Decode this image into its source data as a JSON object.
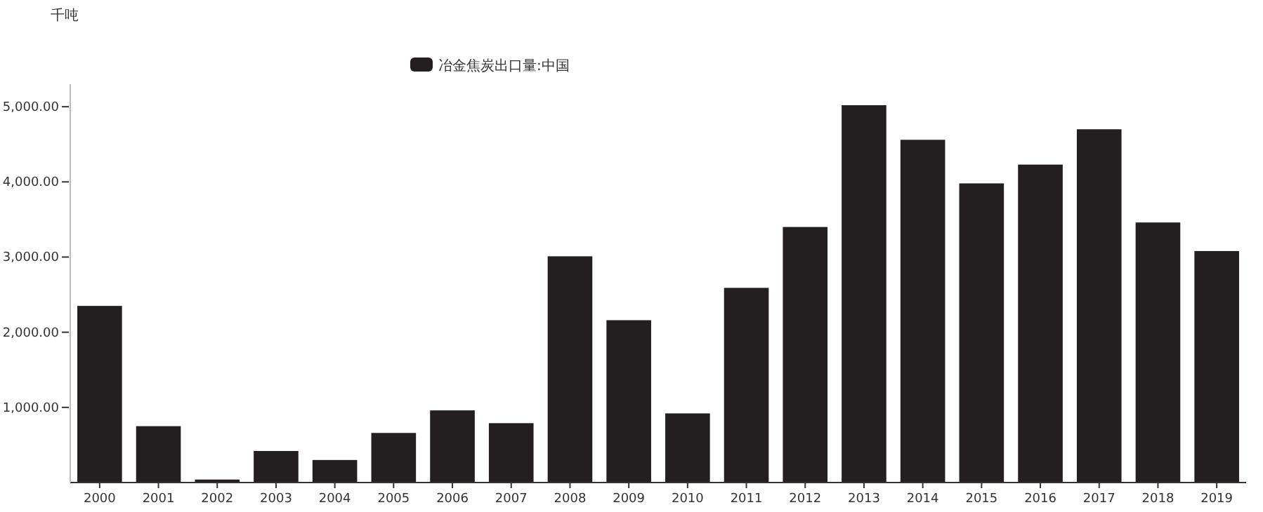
{
  "chart_data": {
    "type": "bar",
    "ylabel": "千吨",
    "categories": [
      "2000",
      "2001",
      "2002",
      "2003",
      "2004",
      "2005",
      "2006",
      "2007",
      "2008",
      "2009",
      "2010",
      "2011",
      "2012",
      "2013",
      "2014",
      "2015",
      "2016",
      "2017",
      "2018",
      "2019"
    ],
    "series": [
      {
        "name": "冶金焦炭出口量:中国",
        "color": "#231f20",
        "values": [
          2350,
          750,
          40,
          420,
          300,
          660,
          960,
          790,
          3010,
          2160,
          920,
          2590,
          3400,
          5020,
          4560,
          3980,
          4230,
          4700,
          3460,
          3080
        ]
      }
    ],
    "ylim": [
      0,
      5300
    ],
    "yticks": [
      {
        "value": 1000,
        "label": "1,000.00"
      },
      {
        "value": 2000,
        "label": "2,000.00"
      },
      {
        "value": 3000,
        "label": "3,000.00"
      },
      {
        "value": 4000,
        "label": "4,000.00"
      },
      {
        "value": 5000,
        "label": "5,000.00"
      }
    ],
    "grid": false,
    "legend": "top"
  }
}
